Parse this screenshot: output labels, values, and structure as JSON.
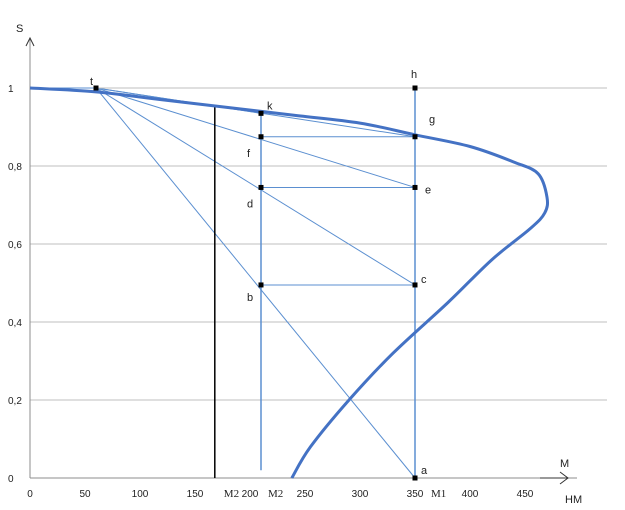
{
  "chart_data": {
    "type": "line",
    "title": "",
    "xlabel": "НМ",
    "x_arrow_label": "M",
    "ylabel": "S",
    "xlim": [
      0,
      550
    ],
    "ylim": [
      0,
      1.1
    ],
    "x_ticks": [
      0,
      50,
      100,
      150,
      200,
      250,
      300,
      350,
      400,
      450
    ],
    "x_tick_labels": [
      "0",
      "50",
      "100",
      "150",
      "200",
      "250",
      "300",
      "350",
      "400",
      "450"
    ],
    "y_ticks": [
      0,
      0.2,
      0.4,
      0.6,
      0.8,
      1
    ],
    "y_tick_labels": [
      "0",
      "0,2",
      "0,4",
      "0,6",
      "0,8",
      "1"
    ],
    "grid": "horizontal",
    "colors": {
      "curve": "#4472c4",
      "lines": "#5b8fd0",
      "grid": "#bfbfbf",
      "marker": "#000000"
    },
    "series": [
      {
        "role": "characteristic-curve",
        "x": [
          0,
          60,
          120,
          180,
          240,
          300,
          350,
          400,
          440,
          462,
          470,
          468,
          455,
          420,
          380,
          330,
          290,
          255,
          238
        ],
        "y": [
          1.0,
          0.99,
          0.97,
          0.95,
          0.93,
          0.91,
          0.88,
          0.85,
          0.81,
          0.78,
          0.72,
          0.68,
          0.64,
          0.56,
          0.45,
          0.32,
          0.2,
          0.08,
          0.0
        ]
      }
    ],
    "points": [
      {
        "name": "t",
        "x": 60,
        "y": 1.0
      },
      {
        "name": "h",
        "x": 350,
        "y": 1.0
      },
      {
        "name": "k",
        "x": 210,
        "y": 0.935
      },
      {
        "name": "g",
        "x": 350,
        "y": 0.875
      },
      {
        "name": "f",
        "x": 210,
        "y": 0.875
      },
      {
        "name": "e",
        "x": 350,
        "y": 0.745
      },
      {
        "name": "d",
        "x": 210,
        "y": 0.745
      },
      {
        "name": "c",
        "x": 350,
        "y": 0.495
      },
      {
        "name": "b",
        "x": 210,
        "y": 0.495
      },
      {
        "name": "a",
        "x": 350,
        "y": 0.0
      }
    ],
    "rays_from_t": [
      {
        "to": "k",
        "x": 210,
        "y": 0.935
      },
      {
        "to": "g",
        "x": 350,
        "y": 0.875
      },
      {
        "to": "e",
        "x": 350,
        "y": 0.745
      },
      {
        "to": "c",
        "x": 350,
        "y": 0.495
      },
      {
        "to": "a",
        "x": 350,
        "y": 0.0
      }
    ],
    "horizontal_segments": [
      {
        "from": "f",
        "to": "g",
        "y": 0.875
      },
      {
        "from": "d",
        "to": "e",
        "y": 0.745
      },
      {
        "from": "b",
        "to": "c",
        "y": 0.495
      }
    ],
    "vertical_lines": [
      {
        "label": "M2",
        "x": 168,
        "y0": 0,
        "y1": 0.955,
        "color": "#000000",
        "label_at": "axis"
      },
      {
        "label": "M2",
        "x": 210,
        "y0": 0.02,
        "y1": 0.93,
        "color": "#5b8fd0",
        "label_at": "axis"
      },
      {
        "label": "M1",
        "x": 350,
        "y0": 0,
        "y1": 1.0,
        "color": "#5b8fd0",
        "label_at": "axis"
      }
    ]
  }
}
